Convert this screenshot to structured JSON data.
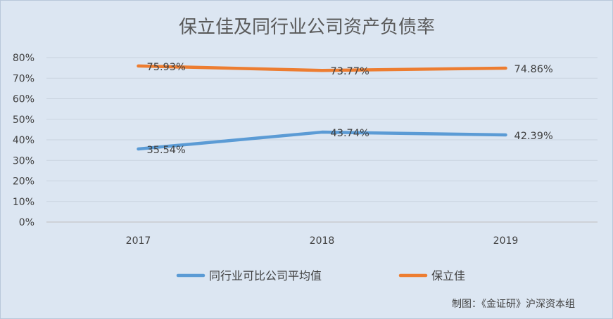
{
  "chart_data": {
    "type": "line",
    "title": "保立佳及同行业公司资产负债率",
    "categories": [
      "2017",
      "2018",
      "2019"
    ],
    "y_ticks": [
      "0%",
      "10%",
      "20%",
      "30%",
      "40%",
      "50%",
      "60%",
      "70%",
      "80%"
    ],
    "ylim": [
      0,
      80
    ],
    "grid": true,
    "legend_position": "bottom",
    "series": [
      {
        "name": "同行业可比公司平均值",
        "values": [
          35.54,
          43.74,
          42.39
        ],
        "labels": [
          "35.54%",
          "43.74%",
          "42.39%"
        ],
        "color": "#5b9bd5"
      },
      {
        "name": "保立佳",
        "values": [
          75.93,
          73.77,
          74.86
        ],
        "labels": [
          "75.93%",
          "73.77%",
          "74.86%"
        ],
        "color": "#ed7d31"
      }
    ]
  },
  "source_note": "制图：《金证研》沪深资本组"
}
